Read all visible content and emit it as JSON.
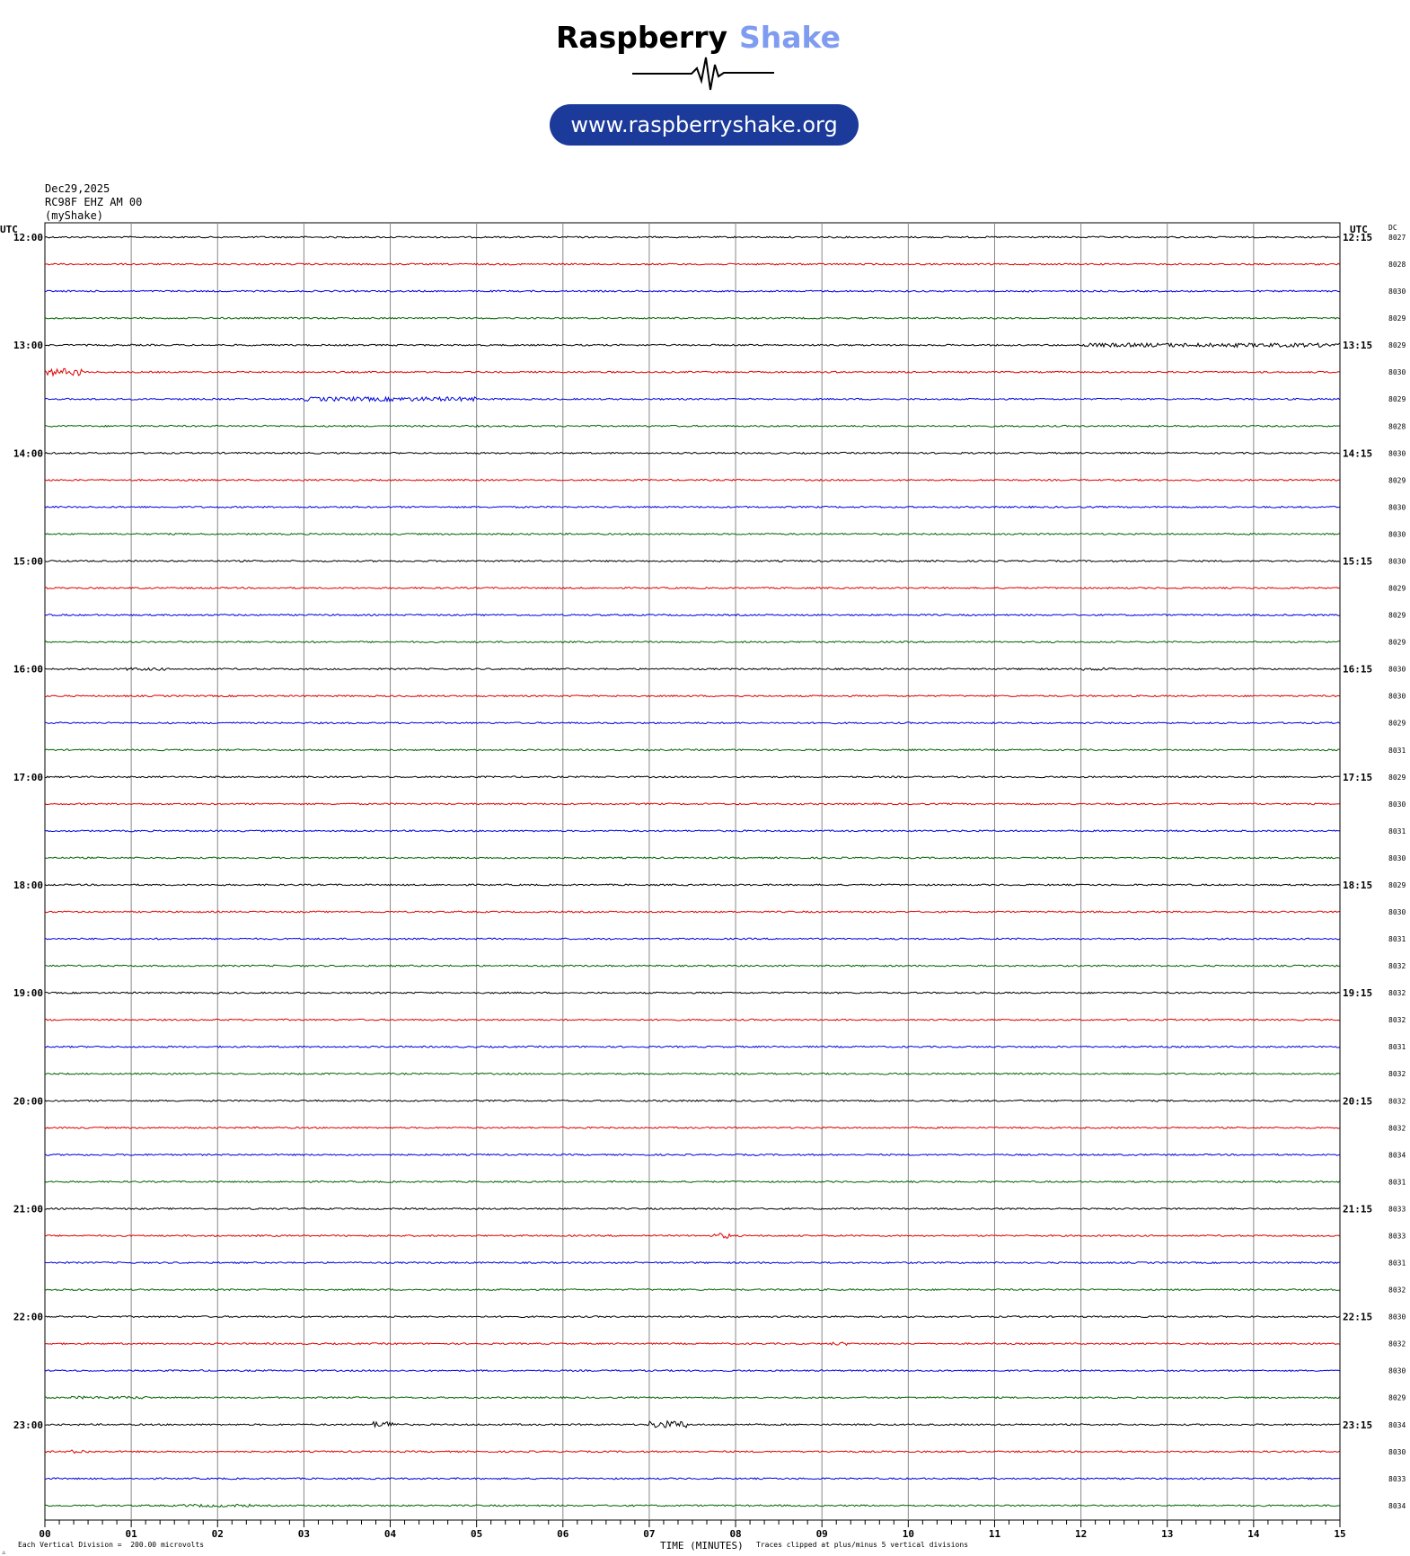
{
  "logo": {
    "brand_word1": "Raspberry",
    "brand_word2": "Shake",
    "url": "www.raspberryshake.org",
    "word1_color": "#000000",
    "word2_color": "#7f9cf0",
    "pill_color": "#1b3a9a"
  },
  "header": {
    "date": "Dec29,2025",
    "station": "RC98F EHZ AM 00",
    "source": "(myShake)",
    "left_utc": "UTC",
    "right_utc": "UTC",
    "dc_label": "DC"
  },
  "footer": {
    "division_note": "Each Vertical Division =  200.00 microvolts",
    "xlabel": "TIME (MINUTES)",
    "clip_note": "Traces clipped at plus/minus 5 vertical divisions"
  },
  "chart_data": {
    "type": "line",
    "title": "",
    "xlabel": "TIME (MINUTES)",
    "ylabel": "",
    "x_range": [
      0,
      15
    ],
    "x_ticks": [
      "00",
      "01",
      "02",
      "03",
      "04",
      "05",
      "06",
      "07",
      "08",
      "09",
      "10",
      "11",
      "12",
      "13",
      "14",
      "15"
    ],
    "trace_colors": [
      "#000000",
      "#e00000",
      "#0000e0",
      "#006400"
    ],
    "left_hour_labels": [
      "12:00",
      "13:00",
      "14:00",
      "15:00",
      "16:00",
      "17:00",
      "18:00",
      "19:00",
      "20:00",
      "21:00",
      "22:00",
      "23:00"
    ],
    "right_hour_labels": [
      "12:15",
      "13:15",
      "14:15",
      "15:15",
      "16:15",
      "17:15",
      "18:15",
      "19:15",
      "20:15",
      "21:15",
      "22:15",
      "23:15"
    ],
    "dc_values": [
      "8027",
      "8028",
      "8030",
      "8029",
      "8029",
      "8030",
      "8029",
      "8028",
      "8030",
      "8029",
      "8030",
      "8030",
      "8030",
      "8029",
      "8029",
      "8029",
      "8030",
      "8030",
      "8029",
      "8031",
      "8029",
      "8030",
      "8031",
      "8030",
      "8029",
      "8030",
      "8031",
      "8032",
      "8032",
      "8032",
      "8031",
      "8032",
      "8032",
      "8032",
      "8034",
      "8031",
      "8033",
      "8033",
      "8031",
      "8032",
      "8030",
      "8032",
      "8030",
      "8029",
      "8034",
      "8030",
      "8033",
      "8034"
    ],
    "events": [
      {
        "row": 4,
        "from": 12.0,
        "to": 15.0,
        "amp": 2.2
      },
      {
        "row": 5,
        "from": 0.0,
        "to": 0.45,
        "amp": 4.0
      },
      {
        "row": 6,
        "from": 3.0,
        "to": 5.0,
        "amp": 2.4
      },
      {
        "row": 16,
        "from": 0.9,
        "to": 1.4,
        "amp": 1.6
      },
      {
        "row": 16,
        "from": 12.0,
        "to": 12.4,
        "amp": 1.6
      },
      {
        "row": 37,
        "from": 7.75,
        "to": 7.95,
        "amp": 3.0
      },
      {
        "row": 41,
        "from": 9.1,
        "to": 9.3,
        "amp": 1.8
      },
      {
        "row": 43,
        "from": 0.3,
        "to": 1.2,
        "amp": 1.6
      },
      {
        "row": 44,
        "from": 3.8,
        "to": 4.1,
        "amp": 3.5
      },
      {
        "row": 44,
        "from": 7.0,
        "to": 7.45,
        "amp": 4.0
      },
      {
        "row": 45,
        "from": 0.3,
        "to": 0.5,
        "amp": 2.0
      },
      {
        "row": 47,
        "from": 1.6,
        "to": 2.4,
        "amp": 1.6
      }
    ],
    "grid": true,
    "legend": "none"
  }
}
